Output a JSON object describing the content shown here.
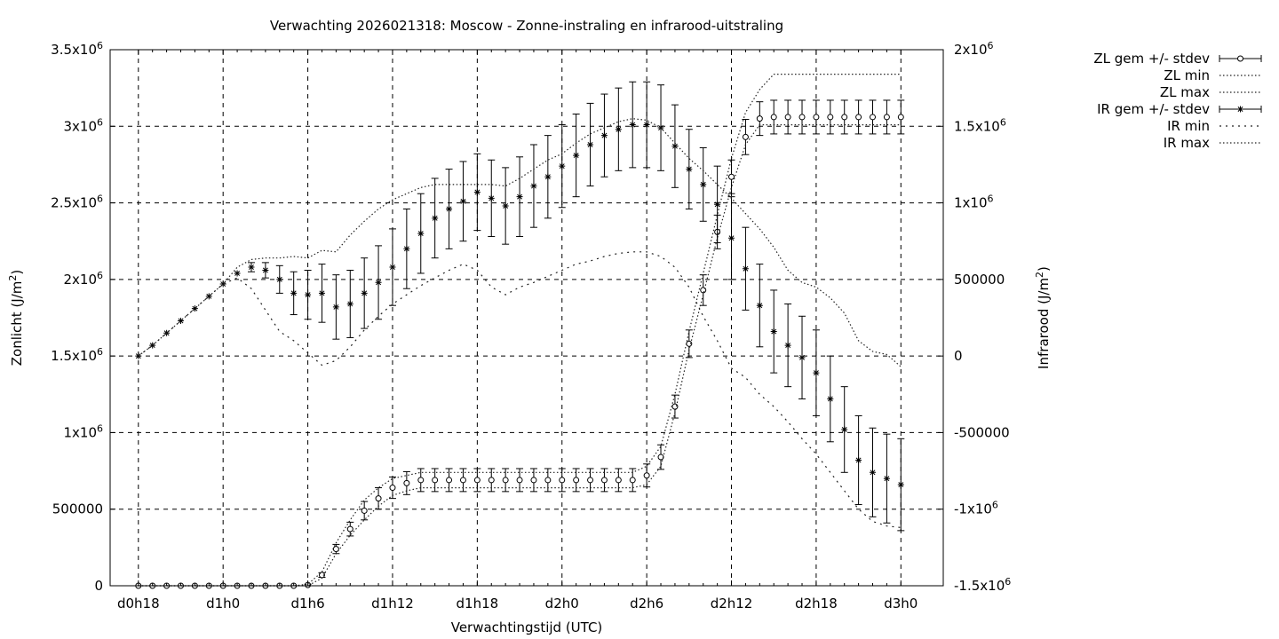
{
  "chart_data": {
    "type": "line",
    "title": "Verwachting 2026021318: Moscow - Zonne-instraling en infrarood-uitstraling",
    "xlabel": "Verwachtingstijd (UTC)",
    "ylabel": "Zonlicht (J/m2)",
    "y2label": "Infrarood (J/m2)",
    "x_unit": "hours since d0h18",
    "x_ticks": [
      "d0h18",
      "d1h0",
      "d1h6",
      "d1h12",
      "d1h18",
      "d2h0",
      "d2h6",
      "d2h12",
      "d2h18",
      "d3h0"
    ],
    "xlim": [
      -2,
      57
    ],
    "ylim": [
      0,
      3500000
    ],
    "y2lim": [
      -1500000,
      2000000
    ],
    "y_ticks": [
      {
        "v": 0,
        "m": "0",
        "e": ""
      },
      {
        "v": 500000,
        "m": "500000",
        "e": ""
      },
      {
        "v": 1000000,
        "m": "1x10",
        "e": "6"
      },
      {
        "v": 1500000,
        "m": "1.5x10",
        "e": "6"
      },
      {
        "v": 2000000,
        "m": "2x10",
        "e": "6"
      },
      {
        "v": 2500000,
        "m": "2.5x10",
        "e": "6"
      },
      {
        "v": 3000000,
        "m": "3x10",
        "e": "6"
      },
      {
        "v": 3500000,
        "m": "3.5x10",
        "e": "6"
      }
    ],
    "y2_ticks": [
      {
        "v": -1500000,
        "m": "-1.5x10",
        "e": "6"
      },
      {
        "v": -1000000,
        "m": "-1x10",
        "e": "6"
      },
      {
        "v": -500000,
        "m": "-500000",
        "e": ""
      },
      {
        "v": 0,
        "m": "0",
        "e": ""
      },
      {
        "v": 500000,
        "m": "500000",
        "e": ""
      },
      {
        "v": 1000000,
        "m": "1x10",
        "e": "6"
      },
      {
        "v": 1500000,
        "m": "1.5x10",
        "e": "6"
      },
      {
        "v": 2000000,
        "m": "2x10",
        "e": "6"
      }
    ],
    "grid": true,
    "legend_position": "outside-top-right",
    "series": [
      {
        "name": "ZL gem +/- stdev",
        "axis": "y1",
        "style": "errorbars",
        "marker": "circle",
        "x": [
          0,
          1,
          2,
          3,
          4,
          5,
          6,
          7,
          8,
          9,
          10,
          11,
          12,
          13,
          14,
          15,
          16,
          17,
          18,
          19,
          20,
          21,
          22,
          23,
          24,
          25,
          26,
          27,
          28,
          29,
          30,
          31,
          32,
          33,
          34,
          35,
          36,
          37,
          38,
          39,
          40,
          41,
          42,
          43,
          44,
          45,
          46,
          47,
          48,
          49,
          50,
          51,
          52,
          53,
          54
        ],
        "mean": [
          0,
          0,
          0,
          0,
          0,
          0,
          0,
          0,
          0,
          0,
          0,
          0,
          5000,
          70000,
          240000,
          370000,
          490000,
          570000,
          640000,
          670000,
          690000,
          690000,
          690000,
          690000,
          690000,
          690000,
          690000,
          690000,
          690000,
          690000,
          690000,
          690000,
          690000,
          690000,
          690000,
          690000,
          720000,
          840000,
          1170000,
          1580000,
          1930000,
          2310000,
          2670000,
          2930000,
          3050000,
          3060000,
          3060000,
          3060000,
          3060000,
          3060000,
          3060000,
          3060000,
          3060000,
          3060000,
          3060000
        ],
        "stdev": [
          0,
          0,
          0,
          0,
          0,
          0,
          0,
          0,
          0,
          0,
          0,
          0,
          5000,
          15000,
          30000,
          45000,
          60000,
          70000,
          70000,
          75000,
          75000,
          75000,
          75000,
          75000,
          75000,
          75000,
          75000,
          75000,
          75000,
          75000,
          75000,
          75000,
          75000,
          75000,
          75000,
          75000,
          75000,
          80000,
          75000,
          90000,
          100000,
          110000,
          110000,
          115000,
          110000,
          110000,
          110000,
          110000,
          110000,
          110000,
          110000,
          110000,
          110000,
          110000,
          110000
        ]
      },
      {
        "name": "ZL min",
        "axis": "y1",
        "style": "dotted",
        "x": [
          0,
          1,
          2,
          3,
          4,
          5,
          6,
          7,
          8,
          9,
          10,
          11,
          12,
          13,
          14,
          15,
          16,
          17,
          18,
          19,
          20,
          21,
          22,
          23,
          24,
          25,
          26,
          27,
          28,
          29,
          30,
          31,
          32,
          33,
          34,
          35,
          36,
          37,
          38,
          39,
          40,
          41,
          42,
          43,
          44,
          45,
          46,
          47,
          48,
          49,
          50,
          51,
          52,
          53,
          54
        ],
        "values": [
          0,
          0,
          0,
          0,
          0,
          0,
          0,
          0,
          0,
          0,
          0,
          0,
          0,
          50000,
          210000,
          330000,
          430000,
          520000,
          590000,
          620000,
          640000,
          640000,
          640000,
          640000,
          640000,
          640000,
          640000,
          640000,
          640000,
          640000,
          640000,
          640000,
          640000,
          640000,
          640000,
          640000,
          660000,
          780000,
          1130000,
          1540000,
          1900000,
          2270000,
          2600000,
          2880000,
          3010000,
          3010000,
          3010000,
          3010000,
          3010000,
          3010000,
          3010000,
          3010000,
          3010000,
          3010000,
          3010000
        ]
      },
      {
        "name": "ZL max",
        "axis": "y1",
        "style": "dotted",
        "x": [
          0,
          1,
          2,
          3,
          4,
          5,
          6,
          7,
          8,
          9,
          10,
          11,
          12,
          13,
          14,
          15,
          16,
          17,
          18,
          19,
          20,
          21,
          22,
          23,
          24,
          25,
          26,
          27,
          28,
          29,
          30,
          31,
          32,
          33,
          34,
          35,
          36,
          37,
          38,
          39,
          40,
          41,
          42,
          43,
          44,
          45,
          46,
          47,
          48,
          49,
          50,
          51,
          52,
          53,
          54
        ],
        "values": [
          0,
          0,
          0,
          0,
          0,
          0,
          0,
          0,
          0,
          0,
          0,
          0,
          10000,
          90000,
          280000,
          430000,
          560000,
          640000,
          700000,
          720000,
          740000,
          740000,
          740000,
          740000,
          740000,
          740000,
          740000,
          740000,
          740000,
          740000,
          740000,
          740000,
          740000,
          740000,
          740000,
          740000,
          780000,
          910000,
          1250000,
          1660000,
          2040000,
          2420000,
          2790000,
          3090000,
          3240000,
          3340000,
          3340000,
          3340000,
          3340000,
          3340000,
          3340000,
          3340000,
          3340000,
          3340000,
          3340000
        ]
      },
      {
        "name": "IR gem +/- stdev",
        "axis": "y2",
        "style": "errorbars",
        "marker": "asterisk",
        "x": [
          0,
          1,
          2,
          3,
          4,
          5,
          6,
          7,
          8,
          9,
          10,
          11,
          12,
          13,
          14,
          15,
          16,
          17,
          18,
          19,
          20,
          21,
          22,
          23,
          24,
          25,
          26,
          27,
          28,
          29,
          30,
          31,
          32,
          33,
          34,
          35,
          36,
          37,
          38,
          39,
          40,
          41,
          42,
          43,
          44,
          45,
          46,
          47,
          48,
          49,
          50,
          51,
          52,
          53,
          54
        ],
        "mean": [
          0,
          70000,
          150000,
          230000,
          310000,
          390000,
          470000,
          540000,
          580000,
          560000,
          500000,
          410000,
          400000,
          410000,
          320000,
          340000,
          410000,
          480000,
          580000,
          700000,
          800000,
          900000,
          960000,
          1010000,
          1070000,
          1030000,
          980000,
          1040000,
          1110000,
          1170000,
          1240000,
          1310000,
          1380000,
          1440000,
          1480000,
          1510000,
          1510000,
          1490000,
          1370000,
          1220000,
          1120000,
          990000,
          770000,
          570000,
          330000,
          160000,
          70000,
          -10000,
          -110000,
          -280000,
          -480000,
          -680000,
          -760000,
          -800000,
          -840000
        ],
        "stdev": [
          0,
          0,
          0,
          0,
          0,
          0,
          0,
          0,
          30000,
          50000,
          90000,
          140000,
          160000,
          190000,
          210000,
          220000,
          230000,
          240000,
          250000,
          260000,
          260000,
          260000,
          260000,
          260000,
          250000,
          250000,
          250000,
          260000,
          270000,
          270000,
          270000,
          270000,
          270000,
          270000,
          270000,
          280000,
          280000,
          280000,
          270000,
          260000,
          240000,
          250000,
          270000,
          270000,
          270000,
          270000,
          270000,
          270000,
          280000,
          280000,
          280000,
          290000,
          290000,
          290000,
          300000
        ]
      },
      {
        "name": "IR min",
        "axis": "y2",
        "style": "dotted",
        "x": [
          0,
          1,
          2,
          3,
          4,
          5,
          6,
          7,
          8,
          9,
          10,
          11,
          12,
          13,
          14,
          15,
          16,
          17,
          18,
          19,
          20,
          21,
          22,
          23,
          24,
          25,
          26,
          27,
          28,
          29,
          30,
          31,
          32,
          33,
          34,
          35,
          36,
          37,
          38,
          39,
          40,
          41,
          42,
          43,
          44,
          45,
          46,
          47,
          48,
          49,
          50,
          51,
          52,
          53,
          54
        ],
        "values": [
          0,
          70000,
          150000,
          230000,
          310000,
          390000,
          470000,
          510000,
          440000,
          300000,
          160000,
          100000,
          20000,
          -60000,
          -30000,
          60000,
          170000,
          260000,
          340000,
          400000,
          460000,
          510000,
          560000,
          600000,
          560000,
          450000,
          400000,
          450000,
          480000,
          520000,
          560000,
          600000,
          620000,
          650000,
          670000,
          680000,
          680000,
          650000,
          580000,
          450000,
          260000,
          100000,
          -80000,
          -140000,
          -250000,
          -330000,
          -430000,
          -540000,
          -640000,
          -760000,
          -880000,
          -1000000,
          -1080000,
          -1110000,
          -1120000
        ]
      },
      {
        "name": "IR max",
        "axis": "y2",
        "style": "dotted",
        "x": [
          0,
          1,
          2,
          3,
          4,
          5,
          6,
          7,
          8,
          9,
          10,
          11,
          12,
          13,
          14,
          15,
          16,
          17,
          18,
          19,
          20,
          21,
          22,
          23,
          24,
          25,
          26,
          27,
          28,
          29,
          30,
          31,
          32,
          33,
          34,
          35,
          36,
          37,
          38,
          39,
          40,
          41,
          42,
          43,
          44,
          45,
          46,
          47,
          48,
          49,
          50,
          51,
          52,
          53,
          54
        ],
        "values": [
          0,
          70000,
          150000,
          230000,
          310000,
          390000,
          470000,
          580000,
          630000,
          640000,
          640000,
          650000,
          640000,
          690000,
          680000,
          790000,
          880000,
          960000,
          1020000,
          1060000,
          1100000,
          1120000,
          1120000,
          1120000,
          1120000,
          1120000,
          1110000,
          1160000,
          1220000,
          1280000,
          1320000,
          1390000,
          1450000,
          1490000,
          1530000,
          1550000,
          1540000,
          1490000,
          1390000,
          1290000,
          1210000,
          1120000,
          1030000,
          930000,
          830000,
          710000,
          560000,
          480000,
          450000,
          380000,
          280000,
          100000,
          30000,
          10000,
          -70000
        ]
      }
    ]
  }
}
